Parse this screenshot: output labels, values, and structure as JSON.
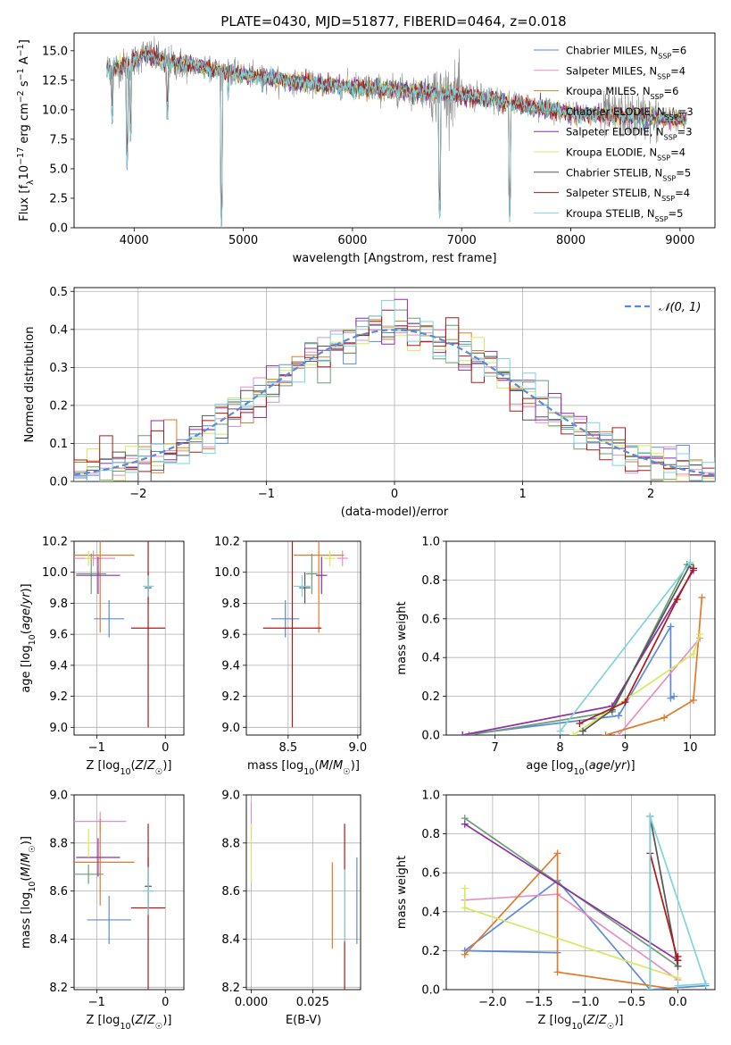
{
  "figure": {
    "title": "PLATE=0430, MJD=51877, FIBERID=0464, z=0.018"
  },
  "colors": {
    "Chabrier MILES": "#5b8bd6",
    "Salpeter MILES": "#e58fc4",
    "Kroupa MILES": "#e07b2a",
    "Chabrier ELODIE": "#6b9e73",
    "Salpeter ELODIE": "#8e2ea8",
    "Kroupa ELODIE": "#d8e860",
    "Chabrier STELIB": "#555555",
    "Salpeter STELIB": "#b01818",
    "Kroupa STELIB": "#7dd4dc",
    "data": "#8a8a8a"
  },
  "chart_data": [
    {
      "id": "spectrum",
      "type": "line",
      "xlabel": "wavelength [Angstrom, rest frame]",
      "ylabel": "Flux [f",
      "ylabel_parts": [
        "Flux [f",
        "λ",
        "10",
        "−17",
        " erg cm",
        "−2",
        " s",
        "−1",
        " A",
        "−1",
        "]"
      ],
      "xlim": [
        3450,
        9320
      ],
      "ylim": [
        0,
        16.5
      ],
      "xticks": [
        4000,
        5000,
        6000,
        7000,
        8000,
        9000
      ],
      "yticks": [
        0.0,
        2.5,
        5.0,
        7.5,
        10.0,
        12.5,
        15.0
      ],
      "ytick_labels": [
        "0.0",
        "2.5",
        "5.0",
        "7.5",
        "10.0",
        "12.5",
        "15.0"
      ],
      "legend": [
        {
          "name": "Chabrier MILES",
          "nssp": "6"
        },
        {
          "name": "Salpeter MILES",
          "nssp": "4"
        },
        {
          "name": "Kroupa MILES",
          "nssp": "6"
        },
        {
          "name": "Chabrier ELODIE",
          "nssp": "3"
        },
        {
          "name": "Salpeter ELODIE",
          "nssp": "3"
        },
        {
          "name": "Kroupa ELODIE",
          "nssp": "4"
        },
        {
          "name": "Chabrier STELIB",
          "nssp": "5"
        },
        {
          "name": "Salpeter STELIB",
          "nssp": "4"
        },
        {
          "name": "Kroupa STELIB",
          "nssp": "5"
        }
      ],
      "legend_placement": "upper right",
      "data_range": [
        3750,
        9060
      ],
      "continuum_points": [
        [
          3750,
          13.5
        ],
        [
          3950,
          13.8
        ],
        [
          4100,
          14.8
        ],
        [
          4300,
          14.0
        ],
        [
          4500,
          13.8
        ],
        [
          4800,
          13.3
        ],
        [
          5000,
          13.0
        ],
        [
          5500,
          12.3
        ],
        [
          6000,
          11.9
        ],
        [
          6500,
          11.6
        ],
        [
          7000,
          11.3
        ],
        [
          7500,
          10.5
        ],
        [
          8000,
          9.7
        ],
        [
          8500,
          9.5
        ],
        [
          9060,
          9.1
        ]
      ],
      "dips": [
        [
          3800,
          8.0
        ],
        [
          3935,
          4.5
        ],
        [
          3968,
          6.5
        ],
        [
          4305,
          8.0
        ],
        [
          4800,
          0.0
        ],
        [
          4862,
          10.0
        ],
        [
          5175,
          10.3
        ],
        [
          5890,
          10.0
        ],
        [
          6563,
          10.0
        ],
        [
          6800,
          0.0
        ],
        [
          7440,
          0.5
        ],
        [
          7600,
          9.0
        ],
        [
          8500,
          8.8
        ],
        [
          8540,
          8.5
        ],
        [
          8660,
          8.6
        ]
      ]
    },
    {
      "id": "residuals",
      "type": "line",
      "xlabel": "(data-model)/error",
      "ylabel": "Normed distribution",
      "xlim": [
        -2.5,
        2.5
      ],
      "ylim": [
        0.0,
        0.51
      ],
      "xticks": [
        -2,
        -1,
        0,
        1,
        2
      ],
      "xtick_labels": [
        "−2",
        "−1",
        "0",
        "1",
        "2"
      ],
      "yticks": [
        0.0,
        0.1,
        0.2,
        0.3,
        0.4,
        0.5
      ],
      "ytick_labels": [
        "0.0",
        "0.1",
        "0.2",
        "0.3",
        "0.4",
        "0.5"
      ],
      "legend_placement": "upper right",
      "reference_curve": {
        "name": "𝒩(0, 1)",
        "style": "dashed",
        "color": "#5b8bd6"
      },
      "bin_width": 0.1,
      "grid": true
    },
    {
      "id": "age-vs-Z",
      "type": "scatter",
      "xlabel": "Z [log10(Z/Z☉)]",
      "ylabel": "age [log10(age/yr)]",
      "xlim": [
        -1.33,
        0.27
      ],
      "ylim": [
        8.95,
        10.2
      ],
      "xticks": [
        -1,
        0
      ],
      "xtick_labels": [
        "−1",
        "0"
      ],
      "yticks": [
        9.0,
        9.2,
        9.4,
        9.6,
        9.8,
        10.0,
        10.2
      ],
      "ytick_labels": [
        "9.0",
        "9.2",
        "9.4",
        "9.6",
        "9.8",
        "10.0",
        "10.2"
      ],
      "points": [
        {
          "series": "Chabrier MILES",
          "x": -0.82,
          "xerr": 0.22,
          "y": 9.7,
          "yerr": 0.12
        },
        {
          "series": "Salpeter MILES",
          "x": -1.05,
          "xerr": 0.32,
          "y": 10.09,
          "yerr": 0.05
        },
        {
          "series": "Kroupa MILES",
          "x": -0.95,
          "xerr": 0.5,
          "y": 10.11,
          "yerr": 0.5
        },
        {
          "series": "Chabrier ELODIE",
          "x": -1.08,
          "xerr": 0.22,
          "y": 9.99,
          "yerr": 0.13
        },
        {
          "series": "Salpeter ELODIE",
          "x": -0.98,
          "xerr": 0.32,
          "y": 9.98,
          "yerr": 0.12
        },
        {
          "series": "Kroupa ELODIE",
          "x": -1.12,
          "xerr": 0.05,
          "y": 10.09,
          "yerr": 0.05
        },
        {
          "series": "Chabrier STELIB",
          "x": -0.25,
          "xerr": 0.05,
          "y": 9.9,
          "yerr": 0.1
        },
        {
          "series": "Salpeter STELIB",
          "x": -0.25,
          "xerr": 0.25,
          "y": 9.64,
          "yerr": 0.64
        },
        {
          "series": "Kroupa STELIB",
          "x": -0.25,
          "xerr": 0.08,
          "y": 9.91,
          "yerr": 0.07
        }
      ]
    },
    {
      "id": "age-vs-mass",
      "type": "scatter",
      "xlabel": "mass [log10(M/M☉)]",
      "ylabel": "",
      "xlim": [
        8.2,
        9.02
      ],
      "ylim": [
        8.95,
        10.2
      ],
      "xticks": [
        8.5,
        9.0
      ],
      "xtick_labels": [
        "8.5",
        "9.0"
      ],
      "yticks": [
        9.0,
        9.2,
        9.4,
        9.6,
        9.8,
        10.0,
        10.2
      ],
      "ytick_labels": [
        "9.0",
        "9.2",
        "9.4",
        "9.6",
        "9.8",
        "10.0",
        "10.2"
      ],
      "points": [
        {
          "series": "Chabrier MILES",
          "x": 8.48,
          "xerr": 0.1,
          "y": 9.7,
          "yerr": 0.12
        },
        {
          "series": "Salpeter MILES",
          "x": 8.89,
          "xerr": 0.04,
          "y": 10.09,
          "yerr": 0.05
        },
        {
          "series": "Kroupa MILES",
          "x": 8.72,
          "xerr": 0.18,
          "y": 10.11,
          "yerr": 0.5
        },
        {
          "series": "Chabrier ELODIE",
          "x": 8.67,
          "xerr": 0.04,
          "y": 9.99,
          "yerr": 0.13
        },
        {
          "series": "Salpeter ELODIE",
          "x": 8.74,
          "xerr": 0.04,
          "y": 9.98,
          "yerr": 0.12
        },
        {
          "series": "Kroupa ELODIE",
          "x": 8.8,
          "xerr": 0.04,
          "y": 10.09,
          "yerr": 0.05
        },
        {
          "series": "Chabrier STELIB",
          "x": 8.62,
          "xerr": 0.04,
          "y": 9.9,
          "yerr": 0.1
        },
        {
          "series": "Salpeter STELIB",
          "x": 8.53,
          "xerr": 0.21,
          "y": 9.64,
          "yerr": 0.64
        },
        {
          "series": "Kroupa STELIB",
          "x": 8.6,
          "xerr": 0.06,
          "y": 9.91,
          "yerr": 0.07
        }
      ]
    },
    {
      "id": "mass-weight-vs-age",
      "type": "line",
      "xlabel": "age [log10(age/yr)]",
      "ylabel": "mass weight",
      "xlim": [
        6.25,
        10.38
      ],
      "ylim": [
        0.0,
        1.0
      ],
      "xticks": [
        7,
        8,
        9,
        10
      ],
      "yticks": [
        0.0,
        0.2,
        0.4,
        0.6,
        0.8,
        1.0
      ],
      "ytick_labels": [
        "0.0",
        "0.2",
        "0.4",
        "0.6",
        "0.8",
        "1.0"
      ],
      "series": [
        {
          "name": "Chabrier MILES",
          "x": [
            6.5,
            8.9,
            9.7,
            9.7,
            9.75
          ],
          "y": [
            0.0,
            0.1,
            0.56,
            0.19,
            0.2
          ]
        },
        {
          "name": "Salpeter MILES",
          "x": [
            8.9,
            10.15
          ],
          "y": [
            0.0,
            0.5
          ]
        },
        {
          "name": "Kroupa MILES",
          "x": [
            8.7,
            9.6,
            10.05,
            10.18
          ],
          "y": [
            0.0,
            0.09,
            0.18,
            0.71
          ]
        },
        {
          "name": "Chabrier ELODIE",
          "x": [
            6.6,
            8.8,
            9.95,
            10.05
          ],
          "y": [
            0.0,
            0.12,
            0.88,
            0.86
          ]
        },
        {
          "name": "Salpeter ELODIE",
          "x": [
            6.5,
            8.8,
            10.05
          ],
          "y": [
            0.0,
            0.15,
            0.85
          ]
        },
        {
          "name": "Kroupa ELODIE",
          "x": [
            8.2,
            10.05,
            10.15
          ],
          "y": [
            0.0,
            0.42,
            0.52
          ]
        },
        {
          "name": "Chabrier STELIB",
          "x": [
            8.35,
            8.8,
            10.0
          ],
          "y": [
            0.02,
            0.13,
            0.88
          ]
        },
        {
          "name": "Salpeter STELIB",
          "x": [
            8.3,
            9.0,
            9.8,
            10.05
          ],
          "y": [
            0.06,
            0.17,
            0.7,
            0.86
          ]
        },
        {
          "name": "Kroupa STELIB",
          "x": [
            8.0,
            10.0
          ],
          "y": [
            0.02,
            0.89
          ]
        }
      ]
    },
    {
      "id": "mass-vs-Z",
      "type": "scatter",
      "xlabel": "Z [log10(Z/Z☉)]",
      "ylabel": "mass [log10(M/M☉)]",
      "xlim": [
        -1.33,
        0.27
      ],
      "ylim": [
        8.19,
        9.0
      ],
      "xticks": [
        -1,
        0
      ],
      "xtick_labels": [
        "−1",
        "0"
      ],
      "yticks": [
        8.2,
        8.4,
        8.6,
        8.8,
        9.0
      ],
      "ytick_labels": [
        "8.2",
        "8.4",
        "8.6",
        "8.8",
        "9.0"
      ],
      "points": [
        {
          "series": "Chabrier MILES",
          "x": -0.82,
          "xerr": 0.32,
          "y": 8.48,
          "yerr": 0.1
        },
        {
          "series": "Salpeter MILES",
          "x": -0.95,
          "xerr": 0.38,
          "y": 8.89,
          "yerr": 0.04
        },
        {
          "series": "Kroupa MILES",
          "x": -0.95,
          "xerr": 0.5,
          "y": 8.72,
          "yerr": 0.18
        },
        {
          "series": "Chabrier ELODIE",
          "x": -1.12,
          "xerr": 0.22,
          "y": 8.67,
          "yerr": 0.04
        },
        {
          "series": "Salpeter ELODIE",
          "x": -0.98,
          "xerr": 0.32,
          "y": 8.74,
          "yerr": 0.08
        },
        {
          "series": "Kroupa ELODIE",
          "x": -1.12,
          "xerr": 0.05,
          "y": 8.8,
          "yerr": 0.06
        },
        {
          "series": "Chabrier STELIB",
          "x": -0.25,
          "xerr": 0.05,
          "y": 8.62,
          "yerr": 0.12
        },
        {
          "series": "Salpeter STELIB",
          "x": -0.25,
          "xerr": 0.25,
          "y": 8.53,
          "yerr": 0.35
        },
        {
          "series": "Kroupa STELIB",
          "x": -0.25,
          "xerr": 0.08,
          "y": 8.6,
          "yerr": 0.1
        }
      ]
    },
    {
      "id": "mass-vs-ebv",
      "type": "scatter",
      "xlabel": "E(B-V)",
      "ylabel": "",
      "xlim": [
        -0.002,
        0.0445
      ],
      "ylim": [
        8.19,
        9.0
      ],
      "xticks": [
        0.0,
        0.025
      ],
      "xtick_labels": [
        "0.000",
        "0.025"
      ],
      "yticks": [
        8.2,
        8.4,
        8.6,
        8.8,
        9.0
      ],
      "ytick_labels": [
        "8.2",
        "8.4",
        "8.6",
        "8.8",
        "9.0"
      ],
      "points": [
        {
          "series": "Chabrier MILES",
          "x": 0.043,
          "xerr": 0.0,
          "y": 8.56,
          "yerr": 0.18
        },
        {
          "series": "Salpeter MILES",
          "x": 0.0,
          "xerr": 0.0,
          "y": 8.9,
          "yerr": 0.07
        },
        {
          "series": "Kroupa MILES",
          "x": 0.033,
          "xerr": 0.0,
          "y": 8.54,
          "yerr": 0.18
        },
        {
          "series": "Kroupa ELODIE",
          "x": 0.0,
          "xerr": 0.0,
          "y": 8.76,
          "yerr": 0.12
        },
        {
          "series": "Salpeter STELIB",
          "x": 0.038,
          "xerr": 0.0,
          "y": 8.53,
          "yerr": 0.35
        },
        {
          "series": "Kroupa STELIB",
          "x": 0.038,
          "xerr": 0.0,
          "y": 8.54,
          "yerr": 0.15
        }
      ]
    },
    {
      "id": "mass-weight-vs-Z",
      "type": "line",
      "xlabel": "Z [log10(Z/Z☉)]",
      "ylabel": "mass weight",
      "xlim": [
        -2.5,
        0.4
      ],
      "ylim": [
        0.0,
        1.0
      ],
      "xticks": [
        -2.0,
        -1.5,
        -1.0,
        -0.5,
        0.0
      ],
      "xtick_labels": [
        "−2.0",
        "−1.5",
        "−1.0",
        "−0.5",
        "0.0"
      ],
      "yticks": [
        0.0,
        0.2,
        0.4,
        0.6,
        0.8,
        1.0
      ],
      "ytick_labels": [
        "0.0",
        "0.2",
        "0.4",
        "0.6",
        "0.8",
        "1.0"
      ],
      "series": [
        {
          "name": "Chabrier MILES",
          "x": [
            -1.3,
            -2.3,
            -1.3,
            -0.3,
            0.3
          ],
          "y": [
            0.19,
            0.2,
            0.56,
            0.0,
            0.02
          ]
        },
        {
          "name": "Salpeter MILES",
          "x": [
            -2.3,
            -1.3,
            0.0
          ],
          "y": [
            0.46,
            0.49,
            0.05
          ]
        },
        {
          "name": "Kroupa MILES",
          "x": [
            -2.3,
            -1.3,
            -1.3,
            0.0
          ],
          "y": [
            0.18,
            0.7,
            0.09,
            0.0
          ]
        },
        {
          "name": "Chabrier ELODIE",
          "x": [
            -2.3,
            0.0
          ],
          "y": [
            0.88,
            0.12
          ]
        },
        {
          "name": "Salpeter ELODIE",
          "x": [
            -2.3,
            0.0
          ],
          "y": [
            0.85,
            0.15
          ]
        },
        {
          "name": "Kroupa ELODIE",
          "x": [
            -2.3,
            -2.3,
            0.0
          ],
          "y": [
            0.52,
            0.42,
            0.06
          ]
        },
        {
          "name": "Chabrier STELIB",
          "x": [
            -0.3,
            -0.3,
            0.0
          ],
          "y": [
            0.0,
            0.89,
            0.12
          ]
        },
        {
          "name": "Salpeter STELIB",
          "x": [
            -0.3,
            0.0,
            0.0
          ],
          "y": [
            0.7,
            0.15,
            0.17
          ]
        },
        {
          "name": "Kroupa STELIB",
          "x": [
            -0.3,
            -0.3,
            0.3,
            0.0
          ],
          "y": [
            0.0,
            0.89,
            0.03,
            0.02
          ]
        }
      ]
    }
  ]
}
